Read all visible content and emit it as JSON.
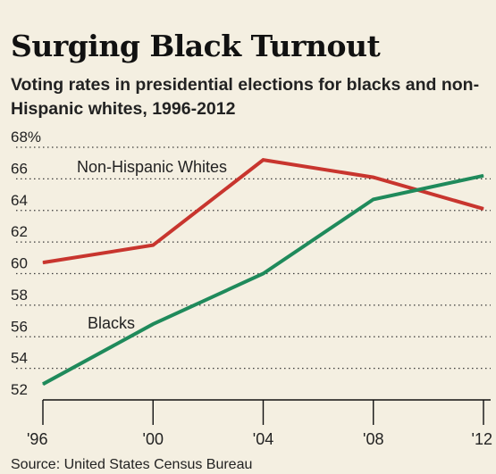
{
  "header": {
    "title": "Surging Black Turnout",
    "subtitle": "Voting rates in presidential elections for blacks and non-Hispanic whites, 1996-2012"
  },
  "footer": {
    "source": "Source: United States Census Bureau"
  },
  "chart_data": {
    "type": "line",
    "title": "Surging Black Turnout",
    "subtitle": "Voting rates in presidential elections for blacks and non-Hispanic whites, 1996-2012",
    "xlabel": "",
    "ylabel": "",
    "categories": [
      "'96",
      "'00",
      "'04",
      "'08",
      "'12"
    ],
    "x": [
      1996,
      2000,
      2004,
      2008,
      2012
    ],
    "ylim": [
      52,
      68
    ],
    "y_ticks": [
      52,
      54,
      56,
      58,
      60,
      62,
      64,
      66,
      68
    ],
    "y_tick_labels": [
      "52",
      "54",
      "56",
      "58",
      "60",
      "62",
      "64",
      "66",
      "68%"
    ],
    "grid": true,
    "legend": "inline labels",
    "series": [
      {
        "name": "Non-Hispanic Whites",
        "values": [
          60.7,
          61.8,
          67.2,
          66.1,
          64.1
        ],
        "color": "#c8352e"
      },
      {
        "name": "Blacks",
        "values": [
          53.0,
          56.8,
          60.0,
          64.7,
          66.2
        ],
        "color": "#1f8a5b"
      }
    ]
  }
}
